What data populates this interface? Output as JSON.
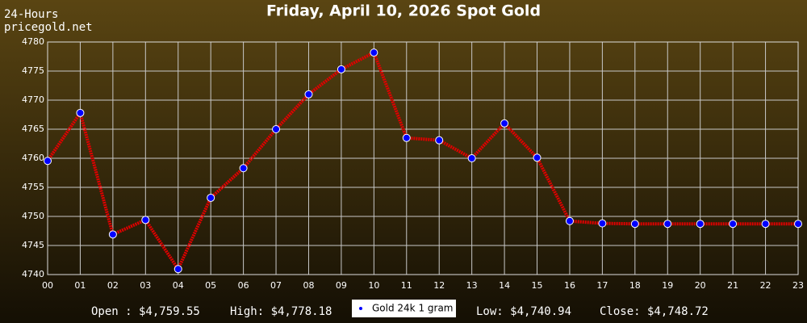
{
  "chart_data": {
    "type": "line",
    "title": "Friday, April 10, 2026 Spot Gold",
    "corner_labels": [
      "24-Hours",
      "pricegold.net"
    ],
    "categories": [
      "00",
      "01",
      "02",
      "03",
      "04",
      "05",
      "06",
      "07",
      "08",
      "09",
      "10",
      "11",
      "12",
      "13",
      "14",
      "15",
      "16",
      "17",
      "18",
      "19",
      "20",
      "21",
      "22",
      "23"
    ],
    "series": [
      {
        "name": "Gold 24k 1 gram",
        "color": "#e00000",
        "marker_color": "#0000ff",
        "values": [
          4759.55,
          4767.8,
          4746.9,
          4749.4,
          4740.94,
          4753.2,
          4758.3,
          4765.0,
          4771.0,
          4775.3,
          4778.18,
          4763.5,
          4763.1,
          4760.0,
          4766.0,
          4760.1,
          4749.2,
          4748.8,
          4748.72,
          4748.72,
          4748.72,
          4748.72,
          4748.72,
          4748.72
        ]
      }
    ],
    "ylim": [
      4740,
      4780
    ],
    "yticks": [
      4740,
      4745,
      4750,
      4755,
      4760,
      4765,
      4770,
      4775,
      4780
    ],
    "grid": true,
    "footer": [
      "Open : $4,759.55",
      "High: $4,778.18",
      "Low: $4,740.94",
      "Close: $4,748.72"
    ]
  }
}
